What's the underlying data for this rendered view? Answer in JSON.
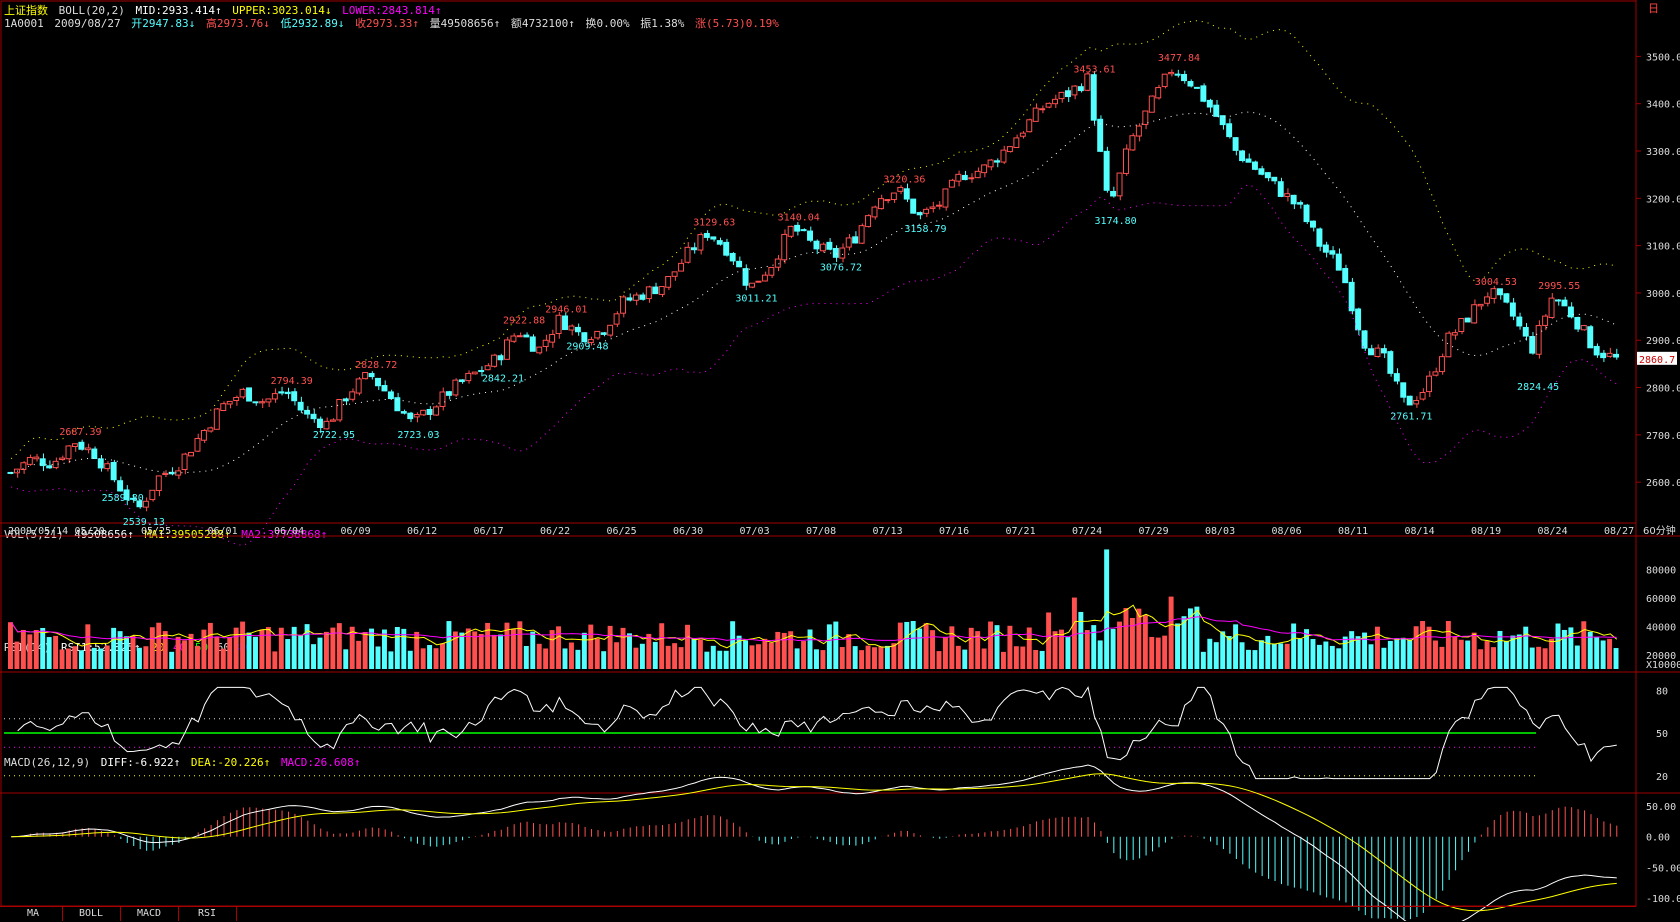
{
  "header": {
    "index_name": "上证指数",
    "boll_label": "BOLL(20,2)",
    "mid": "MID:2933.414↑",
    "upper": "UPPER:3023.014↓",
    "lower": "LOWER:2843.814↑",
    "code": "1A0001",
    "date": "2009/08/27",
    "open": "开2947.83↓",
    "high": "高2973.76↓",
    "low": "低2932.89↓",
    "close": "收2973.33↑",
    "volume": "量49508656↑",
    "amount": "额4732100↑",
    "turnover": "换0.00%",
    "amplitude": "振1.38%",
    "change": "涨(5.73)0.19%"
  },
  "vol_header": {
    "label": "VOL(5,21)",
    "value": "49508656↑",
    "ma1": "MA1:39505288↑",
    "ma2": "MA2:37738868↑"
  },
  "rsi_header": {
    "label": "RSI(14)",
    "rsi1": "RSI1:52.825↑",
    "l20": "20",
    "l40": "40",
    "l50": "50",
    "l60": "60",
    "l80": "80"
  },
  "macd_header": {
    "label": "MACD(26,12,9)",
    "diff": "DIFF:-6.922↑",
    "dea": "DEA:-20.226↑",
    "macd": "MACD:26.608↑"
  },
  "period_label": "60分钟",
  "vol_unit": "X10000",
  "last_price_tag": "2860.7",
  "corner_icon": "日",
  "tabs": [
    "MA",
    "BOLL",
    "MACD",
    "RSI"
  ],
  "colors": {
    "up": "#ff5050",
    "down": "#54ffff",
    "upper": "#ffff00",
    "mid": "#ffffff",
    "lower": "#ff00ff",
    "grid": "#a00000"
  },
  "chart_data": {
    "type": "candlestick",
    "price_axis": {
      "ylim": [
        2520,
        3560
      ],
      "ticks": [
        "2600.0",
        "2700.0",
        "2800.0",
        "2900.0",
        "3000.0",
        "3100.0",
        "3200.0",
        "3300.0",
        "3400.0",
        "3500.0"
      ]
    },
    "x_labels": [
      "2009/05/14",
      "05/20",
      "05/25",
      "06/01",
      "06/04",
      "06/09",
      "06/12",
      "06/17",
      "06/22",
      "06/25",
      "06/30",
      "07/03",
      "07/08",
      "07/13",
      "07/16",
      "07/21",
      "07/24",
      "07/29",
      "08/03",
      "08/06",
      "08/11",
      "08/14",
      "08/19",
      "08/24",
      "08/27"
    ],
    "price_path": [
      2620,
      2650,
      2640,
      2687,
      2660,
      2600,
      2539,
      2610,
      2640,
      2700,
      2760,
      2790,
      2770,
      2794,
      2740,
      2723,
      2790,
      2828,
      2780,
      2723,
      2760,
      2800,
      2830,
      2860,
      2922,
      2880,
      2946,
      2910,
      2920,
      2980,
      3000,
      3020,
      3080,
      3129,
      3090,
      3011,
      3060,
      3140,
      3100,
      3077,
      3120,
      3200,
      3220,
      3160,
      3190,
      3250,
      3260,
      3300,
      3350,
      3400,
      3420,
      3453,
      3175,
      3320,
      3400,
      3477,
      3440,
      3380,
      3300,
      3260,
      3220,
      3180,
      3100,
      3050,
      2900,
      2860,
      2762,
      2800,
      2900,
      2950,
      3004,
      2960,
      2880,
      2995,
      2950,
      2880,
      2860
    ],
    "annotations_high": [
      {
        "value": "2687.39"
      },
      {
        "value": "2794.39"
      },
      {
        "value": "2828.72"
      },
      {
        "value": "2922.88"
      },
      {
        "value": "2946.01"
      },
      {
        "value": "3129.63"
      },
      {
        "value": "3140.04"
      },
      {
        "value": "3220.36"
      },
      {
        "value": "3453.61"
      },
      {
        "value": "3477.84"
      },
      {
        "value": "3004.53"
      },
      {
        "value": "2995.55"
      }
    ],
    "annotations_low": [
      {
        "value": "2589.80"
      },
      {
        "value": "2539.13"
      },
      {
        "value": "2722.95"
      },
      {
        "value": "2723.03"
      },
      {
        "value": "2842.21"
      },
      {
        "value": "2909.48"
      },
      {
        "value": "3011.21"
      },
      {
        "value": "3076.72"
      },
      {
        "value": "3158.79"
      },
      {
        "value": "3174.80"
      },
      {
        "value": "2761.71"
      },
      {
        "value": "2824.45"
      }
    ],
    "vol_axis": {
      "ylim": [
        10000,
        95000
      ],
      "ticks": [
        "20000",
        "40000",
        "60000",
        "80000"
      ]
    },
    "rsi_axis": {
      "ylim": [
        10,
        90
      ],
      "ticks": [
        "20",
        "50",
        "80"
      ],
      "lines": {
        "upper": 60,
        "mid": 50,
        "lower": 40,
        "bottom": 20
      }
    },
    "macd_axis": {
      "ylim": [
        -110,
        60
      ],
      "ticks": [
        "50.00",
        "0.00",
        "-50.00",
        "-100.0"
      ]
    }
  }
}
